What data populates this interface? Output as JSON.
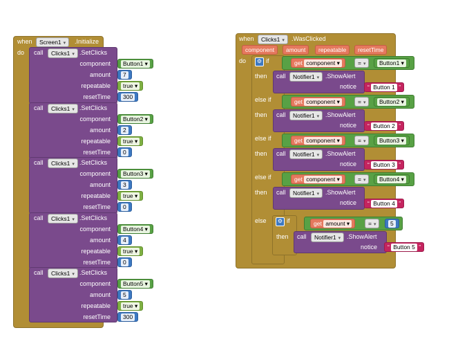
{
  "left_event": {
    "when": "when",
    "component": "Screen1",
    "event": ".Initialize",
    "do": "do",
    "calls": [
      {
        "call": "call",
        "component": "Clicks1",
        "method": ".SetClicks",
        "labels": [
          "component",
          "amount",
          "repeatable",
          "resetTime"
        ],
        "component_value": "Button1",
        "amount": "7",
        "repeatable": "true",
        "resetTime": "300"
      },
      {
        "call": "call",
        "component": "Clicks1",
        "method": ".SetClicks",
        "labels": [
          "component",
          "amount",
          "repeatable",
          "resetTime"
        ],
        "component_value": "Button2",
        "amount": "2",
        "repeatable": "true",
        "resetTime": "0"
      },
      {
        "call": "call",
        "component": "Clicks1",
        "method": ".SetClicks",
        "labels": [
          "component",
          "amount",
          "repeatable",
          "resetTime"
        ],
        "component_value": "Button3",
        "amount": "3",
        "repeatable": "true",
        "resetTime": "0"
      },
      {
        "call": "call",
        "component": "Clicks1",
        "method": ".SetClicks",
        "labels": [
          "component",
          "amount",
          "repeatable",
          "resetTime"
        ],
        "component_value": "Button4",
        "amount": "4",
        "repeatable": "true",
        "resetTime": "0"
      },
      {
        "call": "call",
        "component": "Clicks1",
        "method": ".SetClicks",
        "labels": [
          "component",
          "amount",
          "repeatable",
          "resetTime"
        ],
        "component_value": "Button5",
        "amount": "5",
        "repeatable": "true",
        "resetTime": "300"
      }
    ]
  },
  "right_event": {
    "when": "when",
    "component": "Clicks1",
    "event": ".WasClicked",
    "params": [
      "component",
      "amount",
      "repeatable",
      "resetTime"
    ],
    "do": "do",
    "if": "if",
    "then": "then",
    "else_if": "else if",
    "else": "else",
    "get": "get",
    "eq": "=",
    "branches": [
      {
        "cond_var": "component",
        "cond_value": "Button1",
        "notifier": "Notifier1",
        "method": ".ShowAlert",
        "notice_label": "notice",
        "notice": "Button 1"
      },
      {
        "cond_var": "component",
        "cond_value": "Button2",
        "notifier": "Notifier1",
        "method": ".ShowAlert",
        "notice_label": "notice",
        "notice": "Button 2"
      },
      {
        "cond_var": "component",
        "cond_value": "Button3",
        "notifier": "Notifier1",
        "method": ".ShowAlert",
        "notice_label": "notice",
        "notice": "Button 3"
      },
      {
        "cond_var": "component",
        "cond_value": "Button4",
        "notifier": "Notifier1",
        "method": ".ShowAlert",
        "notice_label": "notice",
        "notice": "Button 4"
      }
    ],
    "else_branch": {
      "cond_var": "amount",
      "cond_value": "5",
      "notifier": "Notifier1",
      "method": ".ShowAlert",
      "notice_label": "notice",
      "notice": "Button 5"
    },
    "call": "call"
  },
  "colors": {
    "event": "#b18e35",
    "component_method": "#7a4a8c",
    "component_ref": "#58a145",
    "number": "#3d79c2",
    "logic": "#7fb043",
    "text": "#c5245f",
    "variable": "#e5795e"
  }
}
